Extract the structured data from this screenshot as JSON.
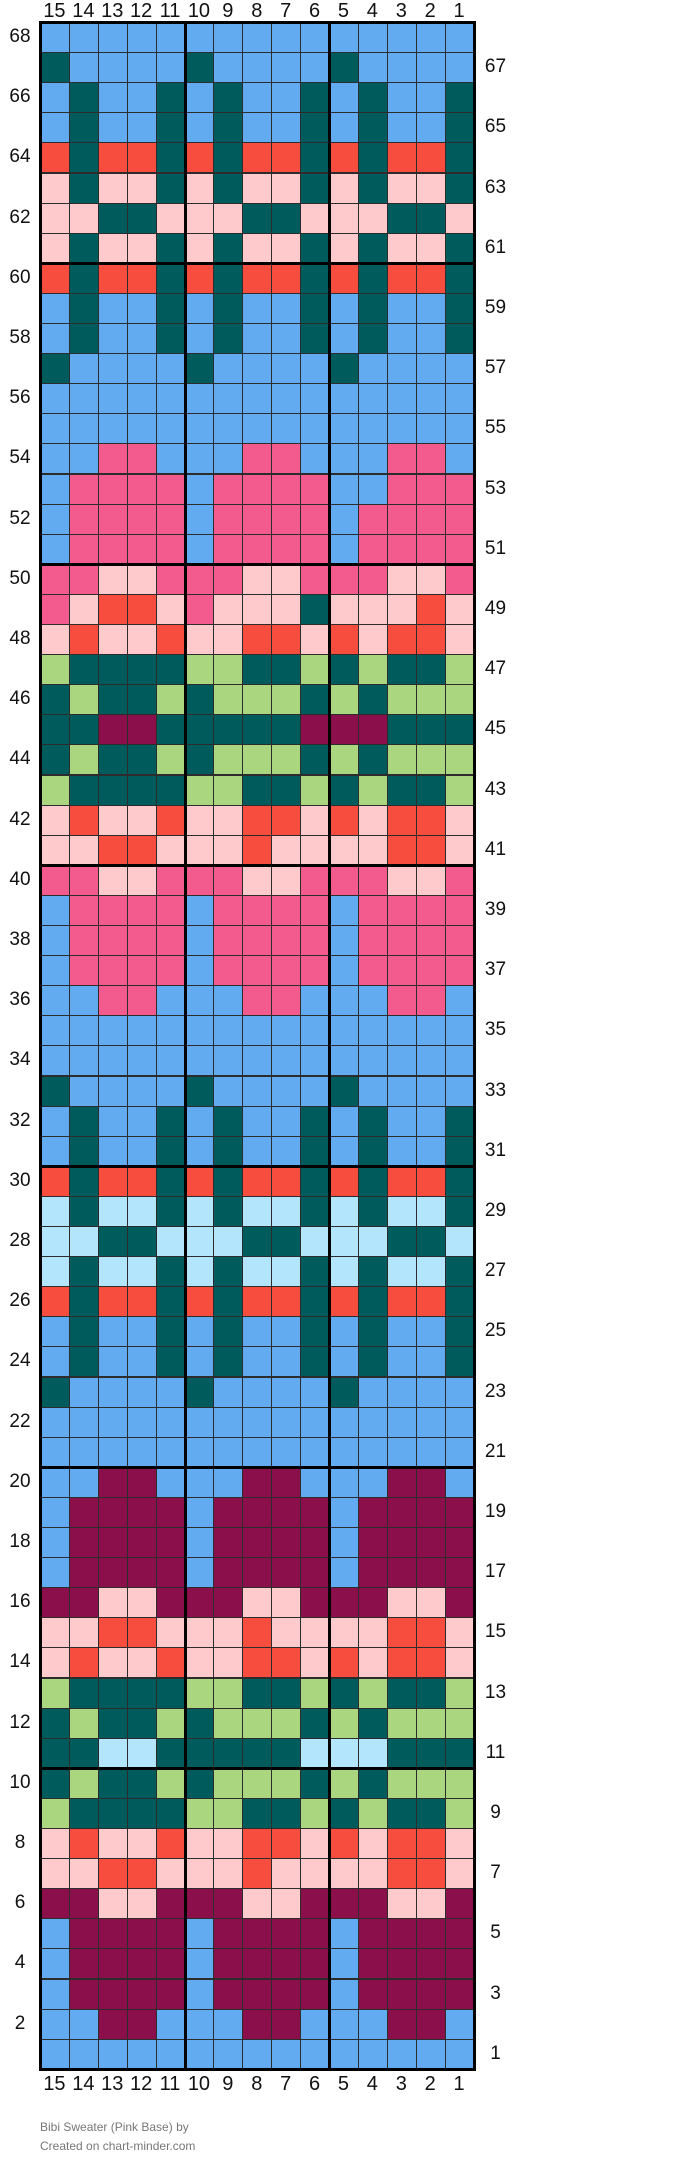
{
  "chart_data": {
    "type": "table",
    "columns_label_order": [
      "15",
      "14",
      "13",
      "12",
      "11",
      "10",
      "9",
      "8",
      "7",
      "6",
      "5",
      "4",
      "3",
      "2",
      "1"
    ],
    "rows": 68,
    "palette": {
      "B": "#62abf0",
      "T": "#005b5c",
      "P": "#f35b8e",
      "L": "#ffcacc",
      "R": "#f64d3f",
      "G": "#a9d67f",
      "M": "#8b0f4a",
      "C": "#b3e5fd"
    },
    "palette_names": {
      "B": "light blue",
      "T": "dark teal",
      "P": "pink",
      "L": "light pink",
      "R": "red",
      "G": "green",
      "M": "maroon",
      "C": "pale blue"
    },
    "grid_top_to_bottom": [
      "BBBBBBBBBBBBBBB",
      "TBBBBTBBBBTBBBB",
      "BTBBTBTBBTBTBBT",
      "BTBBTBTBBTBTBBT",
      "RTRRTRTRRTRTRRT",
      "LTLLTLTLLTLTLLT",
      "LLTTLLLTTLLLTTL",
      "LTLLTLTLLTLTLLT",
      "RTRRTRTRRTRTRRT",
      "BTBBTBTBBTBTBBT",
      "BTBBTBTBBTBTBBT",
      "TBBBBTBBBBTBBBB",
      "BBBBBBBBBBBBBBB",
      "BBBBBBBBBBBBBBB",
      "BBPPBBBPPBBBPPB",
      "BPPPPBPPPPBBPPP",
      "BPPPPBPPPPBPPPP",
      "BPPPPBPPPPBPPPP",
      "PPLLPPPLLPPPLLP",
      "PLRRLPLLLTLLLRL",
      "LRLLRLLRRLRLRRL",
      "GTTTTGGTTGTGTTG",
      "TGTTGTGGGTGTGGG",
      "TTMMTTTTTMMMTTT",
      "TGTTGTGGGTGTGGG",
      "GTTTTGGTTGTGTTG",
      "LRLLRLLRRLRLRRL",
      "LLRRLLLRLLLLRRL",
      "PPLLPPPLLPPPLLP",
      "BPPPPBPPPPBPPPP",
      "BPPPPBPPPPBPPPP",
      "BPPPPBPPPPBPPPP",
      "BBPPBBBPPBBBPPB",
      "BBBBBBBBBBBBBBB",
      "BBBBBBBBBBBBBBB",
      "TBBBBTBBBBTBBBB",
      "BTBBTBTBBTBTBBT",
      "BTBBTBTBBTBTBBT",
      "RTRRTRTRRTRTRRT",
      "CTCCTCTCCTCTCCT",
      "CCTTCCCTTCCCTTC",
      "CTCCTCTCCTCTCCT",
      "RTRRTRTRRTRTRRT",
      "BTBBTBTBBTBTBBT",
      "BTBBTBTBBTBTBBT",
      "TBBBBTBBBBTBBBB",
      "BBBBBBBBBBBBBBB",
      "BBBBBBBBBBBBBBB",
      "BBMMBBBMMBBBMMB",
      "BMMMMBMMMMBMMMM",
      "BMMMMBMMMMBMMMM",
      "BMMMMBMMMMBMMMM",
      "MMLLMMMLLMMMLLM",
      "LLRRLLLRLLLLRRL",
      "LRLLRLLRRLRLRRL",
      "GTTTTGGTTGTGTTG",
      "TGTTGTGGGTGTGGG",
      "TTCCTTTTTCCCTTT",
      "TGTTGTGGGTGTGGG",
      "GTTTTGGTTGTGTTG",
      "LRLLRLLRRLRLRRL",
      "LLRRLLLRLLLLRRL",
      "MMLLMMMLLMMMLLM",
      "BMMMMBMMMMBMMMM",
      "BMMMMBMMMMBMMMM",
      "BMMMMBMMMMBMMMM",
      "BBMMBBBMMBBBMMB",
      "BBBBBBBBBBBBBBB"
    ]
  },
  "footer": {
    "title": "Bibi Sweater (Pink Base)",
    "by": "by",
    "created_prefix": "Created on",
    "site": "chart-minder.com"
  }
}
